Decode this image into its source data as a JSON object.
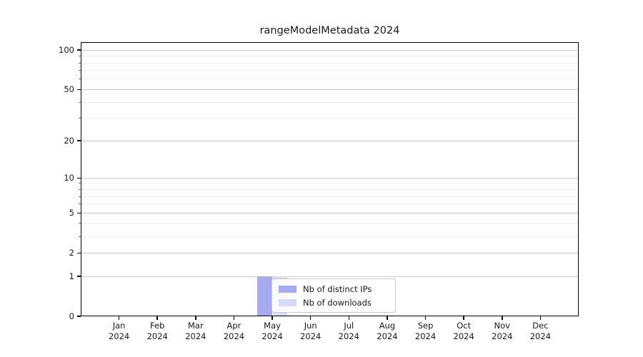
{
  "chart_data": {
    "type": "bar",
    "title": "rangeModelMetadata 2024",
    "categories": [
      "Jan",
      "Feb",
      "Mar",
      "Apr",
      "May",
      "Jun",
      "Jul",
      "Aug",
      "Sep",
      "Oct",
      "Nov",
      "Dec"
    ],
    "x_year": "2024",
    "series": [
      {
        "name": "Nb of distinct IPs",
        "color": "#a9a9ef",
        "values": [
          0,
          0,
          0,
          0,
          1,
          0,
          0,
          0,
          0,
          0,
          0,
          0
        ]
      },
      {
        "name": "Nb of downloads",
        "color": "#d9d9f8",
        "values": [
          0,
          0,
          0,
          0,
          1,
          0,
          0,
          0,
          0,
          0,
          0,
          0
        ]
      }
    ],
    "y_scale": "log1p",
    "y_ticks": [
      0,
      1,
      2,
      5,
      10,
      20,
      50,
      100
    ],
    "y_minor_ticks": [
      3,
      4,
      6,
      7,
      8,
      9,
      30,
      40,
      60,
      70,
      80,
      90
    ],
    "y_max": 115,
    "ylim": [
      0,
      115
    ],
    "grid": true,
    "legend_position": "center",
    "colors": {
      "major_grid": "#cccccc",
      "minor_grid": "#ededed",
      "spine": "#000000",
      "text": "#1a1a1a",
      "background": "#ffffff"
    }
  }
}
